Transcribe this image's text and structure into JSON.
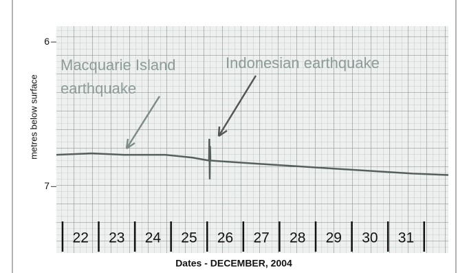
{
  "chart_data": {
    "type": "line",
    "y_label": "metres below surface",
    "x_label": "Dates - DECEMBER, 2004",
    "xlim": [
      21.83,
      32.67
    ],
    "ylim": [
      5.89,
      7.46
    ],
    "y_inverted": true,
    "yticks": [
      6,
      7
    ],
    "xticks": [
      {
        "value": 22.5,
        "label": "22"
      },
      {
        "value": 23.5,
        "label": "23"
      },
      {
        "value": 24.5,
        "label": "24"
      },
      {
        "value": 25.5,
        "label": "25"
      },
      {
        "value": 26.5,
        "label": "26"
      },
      {
        "value": 27.5,
        "label": "27"
      },
      {
        "value": 28.5,
        "label": "28"
      },
      {
        "value": 29.5,
        "label": "29"
      },
      {
        "value": 30.5,
        "label": "30"
      },
      {
        "value": 31.5,
        "label": "31"
      }
    ],
    "series": [
      {
        "color": "#555f5c",
        "x": [
          21.83,
          22.8,
          23.7,
          24.84,
          25.6,
          26.05,
          26.06,
          26.07,
          26.08,
          26.09,
          27.88,
          29.78,
          31.68,
          32.67
        ],
        "values": [
          6.78,
          6.77,
          6.78,
          6.78,
          6.8,
          6.82,
          6.67,
          6.95,
          6.72,
          6.82,
          6.85,
          6.88,
          6.91,
          6.92
        ]
      }
    ],
    "annotations": [
      {
        "text": "Macquarie Island"
      },
      {
        "text": "earthquake"
      },
      {
        "text": "Indonesian earthquake"
      }
    ]
  }
}
